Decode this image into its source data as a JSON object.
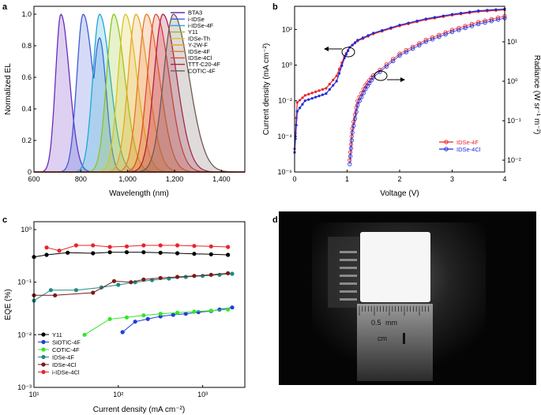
{
  "panel_labels": [
    "a",
    "b",
    "c",
    "d"
  ],
  "chart_data": [
    {
      "panel": "a",
      "type": "area",
      "title": "",
      "xlabel": "Wavelength (nm)",
      "ylabel": "Normalized EL",
      "xlim": [
        600,
        1500
      ],
      "ylim": [
        0,
        1.05
      ],
      "xticks": [
        "600",
        "800",
        "1,000",
        "1,200",
        "1,400"
      ],
      "yticks": [
        "0",
        "0.2",
        "0.4",
        "0.6",
        "0.8",
        "1.0"
      ],
      "series": [
        {
          "name": "BTA3",
          "color": "#6a2bbd",
          "peak": 715,
          "width": 38
        },
        {
          "name": "i-IDSe",
          "color": "#3f5bd6",
          "peak": 810,
          "width": 45,
          "shoulder": [
            880,
            0.85
          ]
        },
        {
          "name": "i-IDSe-4F",
          "color": "#1fa8d8",
          "peak": 880,
          "width": 48
        },
        {
          "name": "Y11",
          "color": "#8fc31f",
          "peak": 940,
          "width": 50
        },
        {
          "name": "IDSe-Th",
          "color": "#d8c51f",
          "peak": 990,
          "width": 52
        },
        {
          "name": "Y-2W-F",
          "color": "#e8a42a",
          "peak": 1035,
          "width": 55
        },
        {
          "name": "IDSe-4F",
          "color": "#e8762a",
          "peak": 1080,
          "width": 58
        },
        {
          "name": "IDSe-4Cl",
          "color": "#e04a2f",
          "peak": 1120,
          "width": 60
        },
        {
          "name": "TTT-C20-4F",
          "color": "#b01f45",
          "peak": 1150,
          "width": 62
        },
        {
          "name": "COTIC-4F",
          "color": "#6e5a55",
          "peak": 1195,
          "width": 70
        }
      ]
    },
    {
      "panel": "b",
      "type": "line",
      "xlabel": "Voltage (V)",
      "ylabel": "Current density (mA cm⁻²)",
      "ylabel_right": "Radiance (W sr⁻¹ m⁻²)",
      "xlim": [
        0,
        4
      ],
      "ylim_log": [
        -6,
        3.3
      ],
      "ylim_right_log": [
        -2.3,
        1.9
      ],
      "xticks": [
        "0",
        "1",
        "2",
        "3",
        "4"
      ],
      "yticks": [
        "10⁻⁶",
        "10⁻⁴",
        "10⁻²",
        "10⁰",
        "10²"
      ],
      "yticks_right": [
        "10⁻²",
        "10⁻¹",
        "10⁰",
        "10¹"
      ],
      "series": [
        {
          "name": "IDSe-4F",
          "color": "#e8242a",
          "current": [
            [
              0.0,
              -4.7
            ],
            [
              0.05,
              -2.1
            ],
            [
              0.2,
              -1.7
            ],
            [
              0.4,
              -1.5
            ],
            [
              0.6,
              -1.3
            ],
            [
              0.8,
              -0.6
            ],
            [
              0.95,
              0.5
            ],
            [
              1.05,
              1.0
            ],
            [
              1.2,
              1.35
            ],
            [
              1.5,
              1.75
            ],
            [
              2.0,
              2.2
            ],
            [
              2.5,
              2.55
            ],
            [
              3.0,
              2.8
            ],
            [
              3.5,
              3.0
            ],
            [
              4.0,
              3.1
            ]
          ],
          "radiance": [
            [
              1.05,
              -2.0
            ],
            [
              1.1,
              -1.2
            ],
            [
              1.2,
              -0.5
            ],
            [
              1.35,
              -0.1
            ],
            [
              1.5,
              0.15
            ],
            [
              2.0,
              0.7
            ],
            [
              2.5,
              1.05
            ],
            [
              3.0,
              1.3
            ],
            [
              3.5,
              1.5
            ],
            [
              4.0,
              1.65
            ]
          ]
        },
        {
          "name": "IDSe-4Cl",
          "color": "#1f2ad6",
          "current": [
            [
              0.0,
              -4.9
            ],
            [
              0.05,
              -2.6
            ],
            [
              0.2,
              -2.0
            ],
            [
              0.4,
              -1.8
            ],
            [
              0.6,
              -1.6
            ],
            [
              0.8,
              -0.9
            ],
            [
              0.95,
              0.4
            ],
            [
              1.05,
              1.0
            ],
            [
              1.2,
              1.4
            ],
            [
              1.5,
              1.8
            ],
            [
              2.0,
              2.25
            ],
            [
              2.5,
              2.6
            ],
            [
              3.0,
              2.85
            ],
            [
              3.5,
              3.05
            ],
            [
              4.0,
              3.15
            ]
          ],
          "radiance": [
            [
              1.05,
              -2.1
            ],
            [
              1.1,
              -1.3
            ],
            [
              1.2,
              -0.6
            ],
            [
              1.35,
              -0.2
            ],
            [
              1.5,
              0.1
            ],
            [
              2.0,
              0.65
            ],
            [
              2.5,
              1.0
            ],
            [
              3.0,
              1.25
            ],
            [
              3.5,
              1.45
            ],
            [
              4.0,
              1.6
            ]
          ]
        }
      ]
    },
    {
      "panel": "c",
      "type": "scatter",
      "xlabel": "Current density (mA cm⁻²)",
      "ylabel": "EQE (%)",
      "xlim_log": [
        1,
        3.5
      ],
      "ylim_log": [
        -3,
        0.15
      ],
      "xticks": [
        "10¹",
        "10²",
        "10³"
      ],
      "yticks": [
        "10⁻³",
        "10⁻²",
        "10⁻¹",
        "10⁰"
      ],
      "series": [
        {
          "name": "Y11",
          "color": "#000000",
          "x": [
            1.0,
            1.15,
            1.4,
            1.7,
            1.9,
            2.1,
            2.3,
            2.5,
            2.7,
            2.9,
            3.1,
            3.3
          ],
          "y": [
            -0.52,
            -0.48,
            -0.44,
            -0.45,
            -0.43,
            -0.43,
            -0.43,
            -0.44,
            -0.45,
            -0.46,
            -0.47,
            -0.48
          ]
        },
        {
          "name": "SiOTIC-4F",
          "color": "#1f3fd6",
          "x": [
            2.05,
            2.2,
            2.35,
            2.5,
            2.65,
            2.8,
            2.95,
            3.1,
            3.2,
            3.35
          ],
          "y": [
            -1.95,
            -1.75,
            -1.7,
            -1.65,
            -1.62,
            -1.6,
            -1.57,
            -1.55,
            -1.52,
            -1.48
          ]
        },
        {
          "name": "COTIC-4F",
          "color": "#33e62a",
          "x": [
            1.6,
            1.9,
            2.1,
            2.3,
            2.5,
            2.7,
            2.9,
            3.1,
            3.3
          ],
          "y": [
            -2.0,
            -1.7,
            -1.67,
            -1.63,
            -1.6,
            -1.58,
            -1.56,
            -1.54,
            -1.52
          ]
        },
        {
          "name": "IDSe-4F",
          "color": "#1f8a82",
          "x": [
            1.0,
            1.2,
            1.5,
            1.8,
            2.0,
            2.2,
            2.4,
            2.6,
            2.8,
            3.0,
            3.2,
            3.35
          ],
          "y": [
            -1.35,
            -1.15,
            -1.15,
            -1.1,
            -1.05,
            -1.0,
            -0.96,
            -0.93,
            -0.9,
            -0.88,
            -0.86,
            -0.84
          ]
        },
        {
          "name": "IDSe-4Cl",
          "color": "#7a1a1a",
          "x": [
            1.0,
            1.25,
            1.7,
            1.95,
            2.15,
            2.3,
            2.5,
            2.7,
            2.9,
            3.1,
            3.3
          ],
          "y": [
            -1.25,
            -1.25,
            -1.2,
            -0.98,
            -1.0,
            -0.95,
            -0.92,
            -0.9,
            -0.88,
            -0.86,
            -0.83
          ]
        },
        {
          "name": "i-IDSe-4Cl",
          "color": "#e8242a",
          "x": [
            1.15,
            1.3,
            1.5,
            1.7,
            1.9,
            2.1,
            2.3,
            2.5,
            2.7,
            2.9,
            3.1,
            3.3
          ],
          "y": [
            -0.34,
            -0.4,
            -0.3,
            -0.3,
            -0.33,
            -0.32,
            -0.3,
            -0.3,
            -0.3,
            -0.31,
            -0.32,
            -0.33
          ]
        }
      ]
    }
  ],
  "photo": {
    "scale_text": [
      "0.5",
      "mm",
      "cm"
    ]
  }
}
